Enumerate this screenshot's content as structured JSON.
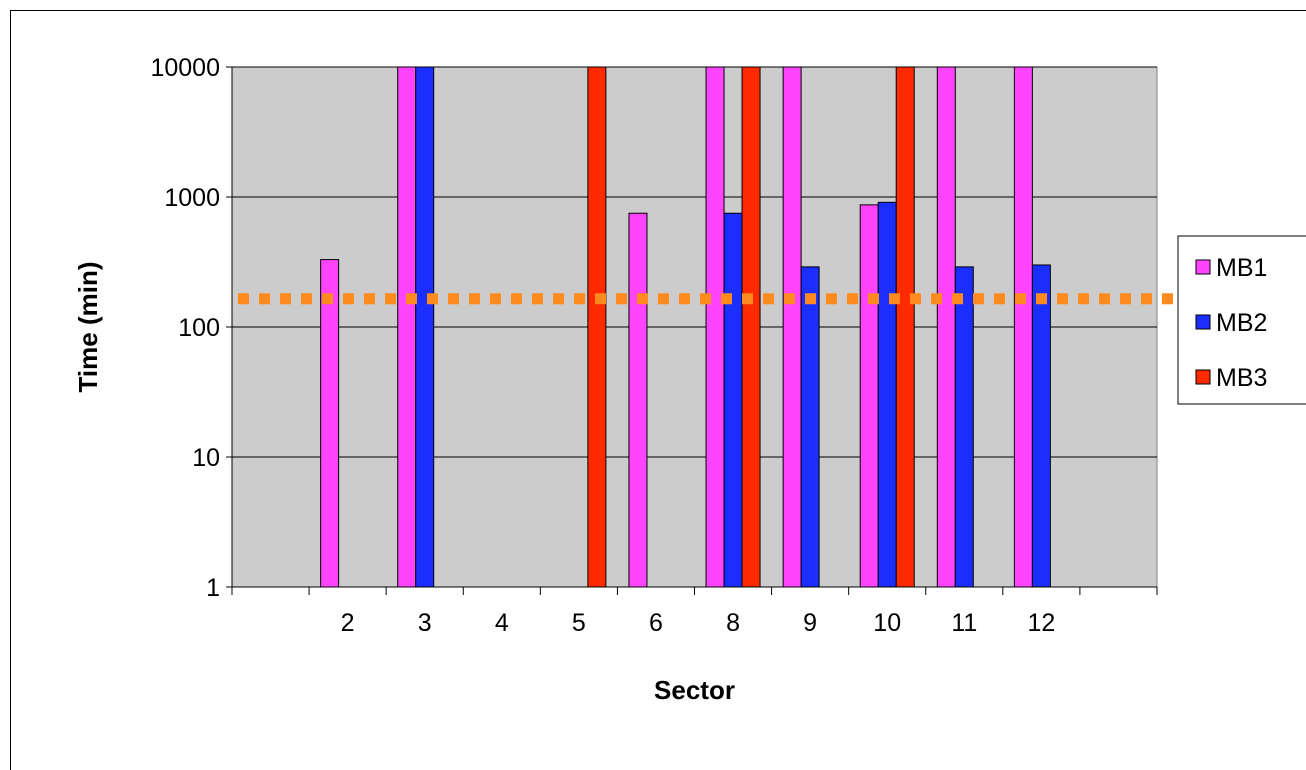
{
  "chart_data": {
    "type": "bar",
    "title": "",
    "xlabel": "Sector",
    "ylabel": "Time (min)",
    "yscale": "log",
    "ylim": [
      1,
      10000
    ],
    "yticks": [
      "1",
      "10",
      "100",
      "1000",
      "10000"
    ],
    "categories": [
      "",
      "2",
      "3",
      "4",
      "5",
      "6",
      "8",
      "9",
      "10",
      "11",
      "12",
      ""
    ],
    "grid": "horizontal",
    "legend_position": "right",
    "series": [
      {
        "name": "MB1",
        "color": "#ff44ff",
        "values": [
          null,
          330,
          10000,
          null,
          null,
          750,
          10000,
          10000,
          870,
          10000,
          10000,
          null
        ]
      },
      {
        "name": "MB2",
        "color": "#1a2eff",
        "values": [
          null,
          null,
          10000,
          null,
          null,
          null,
          750,
          290,
          910,
          290,
          300,
          null
        ]
      },
      {
        "name": "MB3",
        "color": "#ff2a00",
        "values": [
          null,
          null,
          null,
          null,
          10000,
          null,
          10000,
          null,
          10000,
          null,
          null,
          null
        ]
      }
    ],
    "reference_line": {
      "value": 165,
      "color": "#ff8a1e",
      "style": "dotted"
    },
    "plot_background": "#cccccc"
  }
}
